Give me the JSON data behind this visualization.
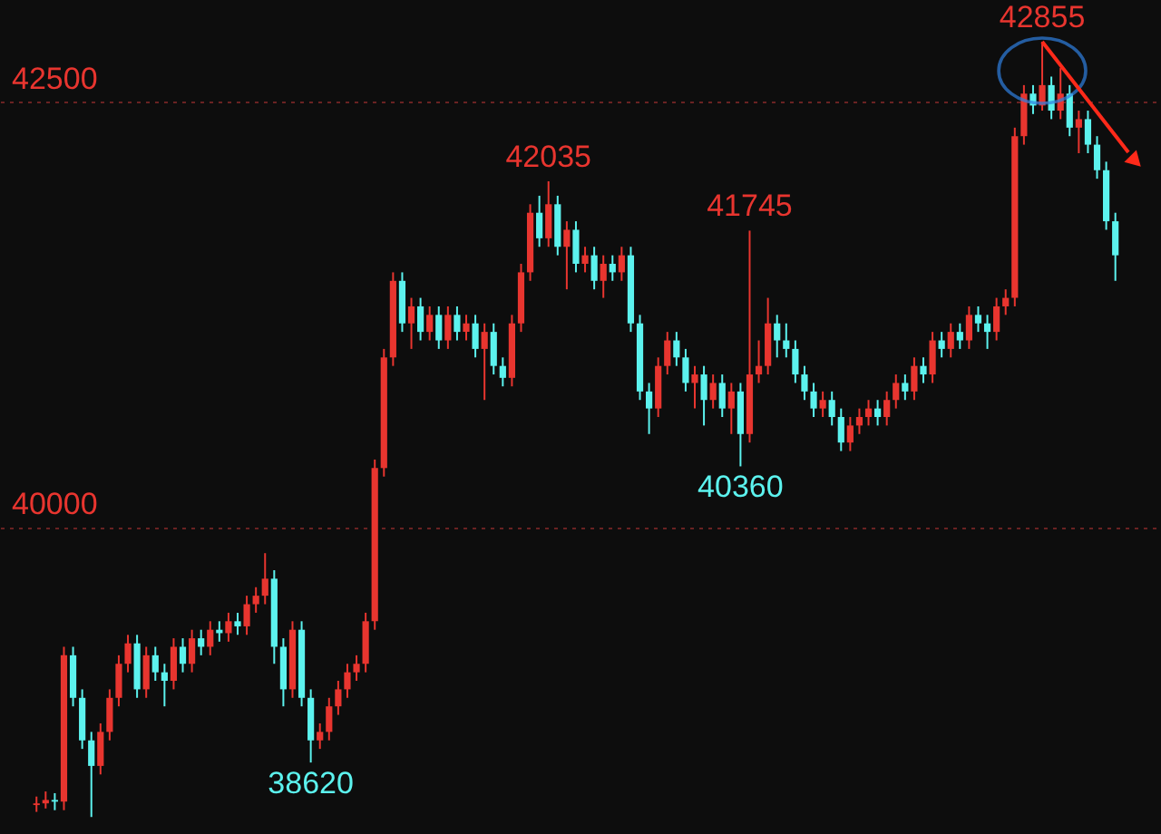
{
  "chart_data": {
    "type": "candlestick",
    "ylim": [
      38200,
      43100
    ],
    "yticks": [
      40000,
      42500
    ],
    "grid": "y",
    "annotations": [
      {
        "text": "42855",
        "y": 42855
      },
      {
        "text": "42035",
        "y": 42035
      },
      {
        "text": "41745",
        "y": 41745
      },
      {
        "text": "40360",
        "y": 40360
      },
      {
        "text": "38620",
        "y": 38620
      }
    ],
    "ohlc": [
      [
        38370,
        38420,
        38330,
        38380
      ],
      [
        38380,
        38450,
        38350,
        38400
      ],
      [
        38400,
        38440,
        38340,
        38390
      ],
      [
        38390,
        39300,
        38340,
        39250
      ],
      [
        39250,
        39300,
        38950,
        39000
      ],
      [
        39000,
        39050,
        38700,
        38750
      ],
      [
        38750,
        38800,
        38300,
        38600
      ],
      [
        38600,
        38850,
        38550,
        38800
      ],
      [
        38800,
        39050,
        38750,
        39000
      ],
      [
        39000,
        39250,
        38950,
        39200
      ],
      [
        39200,
        39370,
        39150,
        39320
      ],
      [
        39320,
        39370,
        39000,
        39050
      ],
      [
        39050,
        39300,
        39000,
        39250
      ],
      [
        39250,
        39300,
        39100,
        39150
      ],
      [
        39150,
        39200,
        38950,
        39100
      ],
      [
        39100,
        39350,
        39050,
        39300
      ],
      [
        39300,
        39350,
        39150,
        39200
      ],
      [
        39200,
        39400,
        39150,
        39350
      ],
      [
        39350,
        39400,
        39250,
        39300
      ],
      [
        39300,
        39450,
        39250,
        39400
      ],
      [
        39400,
        39450,
        39330,
        39380
      ],
      [
        39380,
        39500,
        39330,
        39450
      ],
      [
        39450,
        39500,
        39370,
        39420
      ],
      [
        39420,
        39600,
        39370,
        39550
      ],
      [
        39550,
        39650,
        39500,
        39600
      ],
      [
        39600,
        39850,
        39550,
        39700
      ],
      [
        39700,
        39750,
        39200,
        39300
      ],
      [
        39300,
        39350,
        38950,
        39050
      ],
      [
        39050,
        39450,
        39000,
        39400
      ],
      [
        39400,
        39450,
        38950,
        39000
      ],
      [
        39000,
        39050,
        38620,
        38750
      ],
      [
        38750,
        38850,
        38700,
        38800
      ],
      [
        38800,
        39000,
        38750,
        38950
      ],
      [
        38950,
        39100,
        38900,
        39050
      ],
      [
        39050,
        39200,
        39000,
        39150
      ],
      [
        39150,
        39250,
        39100,
        39200
      ],
      [
        39200,
        39500,
        39150,
        39450
      ],
      [
        39450,
        40400,
        39400,
        40350
      ],
      [
        40350,
        41050,
        40300,
        41000
      ],
      [
        41000,
        41500,
        40950,
        41450
      ],
      [
        41450,
        41500,
        41150,
        41200
      ],
      [
        41200,
        41350,
        41050,
        41300
      ],
      [
        41300,
        41350,
        41100,
        41150
      ],
      [
        41150,
        41300,
        41100,
        41250
      ],
      [
        41250,
        41300,
        41050,
        41100
      ],
      [
        41100,
        41300,
        41050,
        41250
      ],
      [
        41250,
        41300,
        41100,
        41150
      ],
      [
        41150,
        41250,
        41100,
        41200
      ],
      [
        41200,
        41250,
        41000,
        41050
      ],
      [
        41050,
        41200,
        40750,
        41150
      ],
      [
        41150,
        41200,
        40900,
        40950
      ],
      [
        40950,
        41000,
        40830,
        40880
      ],
      [
        40880,
        41250,
        40830,
        41200
      ],
      [
        41200,
        41550,
        41150,
        41500
      ],
      [
        41500,
        41900,
        41450,
        41850
      ],
      [
        41850,
        41950,
        41650,
        41700
      ],
      [
        41700,
        42035,
        41650,
        41900
      ],
      [
        41900,
        41950,
        41600,
        41650
      ],
      [
        41650,
        41800,
        41400,
        41750
      ],
      [
        41750,
        41800,
        41500,
        41550
      ],
      [
        41550,
        41650,
        41500,
        41600
      ],
      [
        41600,
        41650,
        41400,
        41450
      ],
      [
        41450,
        41600,
        41350,
        41550
      ],
      [
        41550,
        41600,
        41450,
        41500
      ],
      [
        41500,
        41650,
        41450,
        41600
      ],
      [
        41600,
        41650,
        41150,
        41200
      ],
      [
        41200,
        41250,
        40750,
        40800
      ],
      [
        40800,
        40850,
        40550,
        40700
      ],
      [
        40700,
        41000,
        40650,
        40950
      ],
      [
        40950,
        41150,
        40900,
        41100
      ],
      [
        41100,
        41150,
        40950,
        41000
      ],
      [
        41000,
        41050,
        40800,
        40850
      ],
      [
        40850,
        40950,
        40700,
        40900
      ],
      [
        40900,
        40950,
        40600,
        40750
      ],
      [
        40750,
        40900,
        40700,
        40850
      ],
      [
        40850,
        40900,
        40650,
        40700
      ],
      [
        40700,
        40850,
        40550,
        40800
      ],
      [
        40800,
        40850,
        40360,
        40550
      ],
      [
        40550,
        41745,
        40500,
        40900
      ],
      [
        40900,
        41100,
        40850,
        40950
      ],
      [
        40950,
        41350,
        40900,
        41200
      ],
      [
        41200,
        41250,
        41000,
        41100
      ],
      [
        41100,
        41200,
        41000,
        41050
      ],
      [
        41050,
        41100,
        40850,
        40900
      ],
      [
        40900,
        40950,
        40750,
        40800
      ],
      [
        40800,
        40850,
        40650,
        40700
      ],
      [
        40700,
        40800,
        40650,
        40750
      ],
      [
        40750,
        40800,
        40600,
        40650
      ],
      [
        40650,
        40700,
        40450,
        40500
      ],
      [
        40500,
        40650,
        40450,
        40600
      ],
      [
        40600,
        40700,
        40550,
        40650
      ],
      [
        40650,
        40750,
        40600,
        40700
      ],
      [
        40700,
        40750,
        40600,
        40650
      ],
      [
        40650,
        40800,
        40600,
        40750
      ],
      [
        40750,
        40900,
        40700,
        40850
      ],
      [
        40850,
        40900,
        40750,
        40800
      ],
      [
        40800,
        41000,
        40750,
        40950
      ],
      [
        40950,
        41000,
        40850,
        40900
      ],
      [
        40900,
        41150,
        40850,
        41100
      ],
      [
        41100,
        41150,
        41000,
        41050
      ],
      [
        41050,
        41200,
        41000,
        41150
      ],
      [
        41150,
        41200,
        41050,
        41100
      ],
      [
        41100,
        41300,
        41050,
        41250
      ],
      [
        41250,
        41300,
        41150,
        41200
      ],
      [
        41200,
        41250,
        41050,
        41150
      ],
      [
        41150,
        41350,
        41100,
        41300
      ],
      [
        41300,
        41400,
        41250,
        41350
      ],
      [
        41350,
        42350,
        41300,
        42300
      ],
      [
        42300,
        42600,
        42250,
        42550
      ],
      [
        42550,
        42600,
        42430,
        42480
      ],
      [
        42480,
        42855,
        42450,
        42600
      ],
      [
        42600,
        42650,
        42400,
        42450
      ],
      [
        42450,
        42700,
        42400,
        42550
      ],
      [
        42550,
        42600,
        42300,
        42350
      ],
      [
        42350,
        42450,
        42200,
        42400
      ],
      [
        42400,
        42450,
        42200,
        42250
      ],
      [
        42250,
        42300,
        42050,
        42100
      ],
      [
        42100,
        42150,
        41750,
        41800
      ],
      [
        41800,
        41850,
        41450,
        41600
      ]
    ],
    "categories": [
      null,
      null,
      null,
      null,
      null,
      null,
      null,
      null,
      null,
      null,
      null,
      null,
      null,
      null,
      null,
      null,
      null,
      null,
      null,
      null,
      null,
      null,
      null,
      null,
      null,
      null,
      null,
      null,
      null,
      null,
      null,
      null,
      null,
      null,
      null,
      null,
      null,
      null,
      null,
      null,
      null,
      null,
      null,
      null,
      null,
      null,
      null,
      null,
      null,
      null,
      null,
      null,
      null,
      null,
      null,
      null,
      null,
      null,
      null,
      null,
      null,
      null,
      null,
      null,
      null,
      null,
      null,
      null,
      null,
      null,
      null,
      null,
      null,
      null,
      null,
      null,
      null,
      null,
      null,
      null,
      null,
      null,
      null,
      null,
      null,
      null,
      null,
      null,
      null,
      null,
      null,
      null,
      null,
      null,
      null,
      null,
      null,
      null,
      null,
      null,
      null,
      null,
      null,
      null,
      null,
      null,
      null,
      null,
      null,
      null,
      null,
      null,
      null,
      null,
      null,
      null,
      null,
      null,
      null
    ]
  }
}
